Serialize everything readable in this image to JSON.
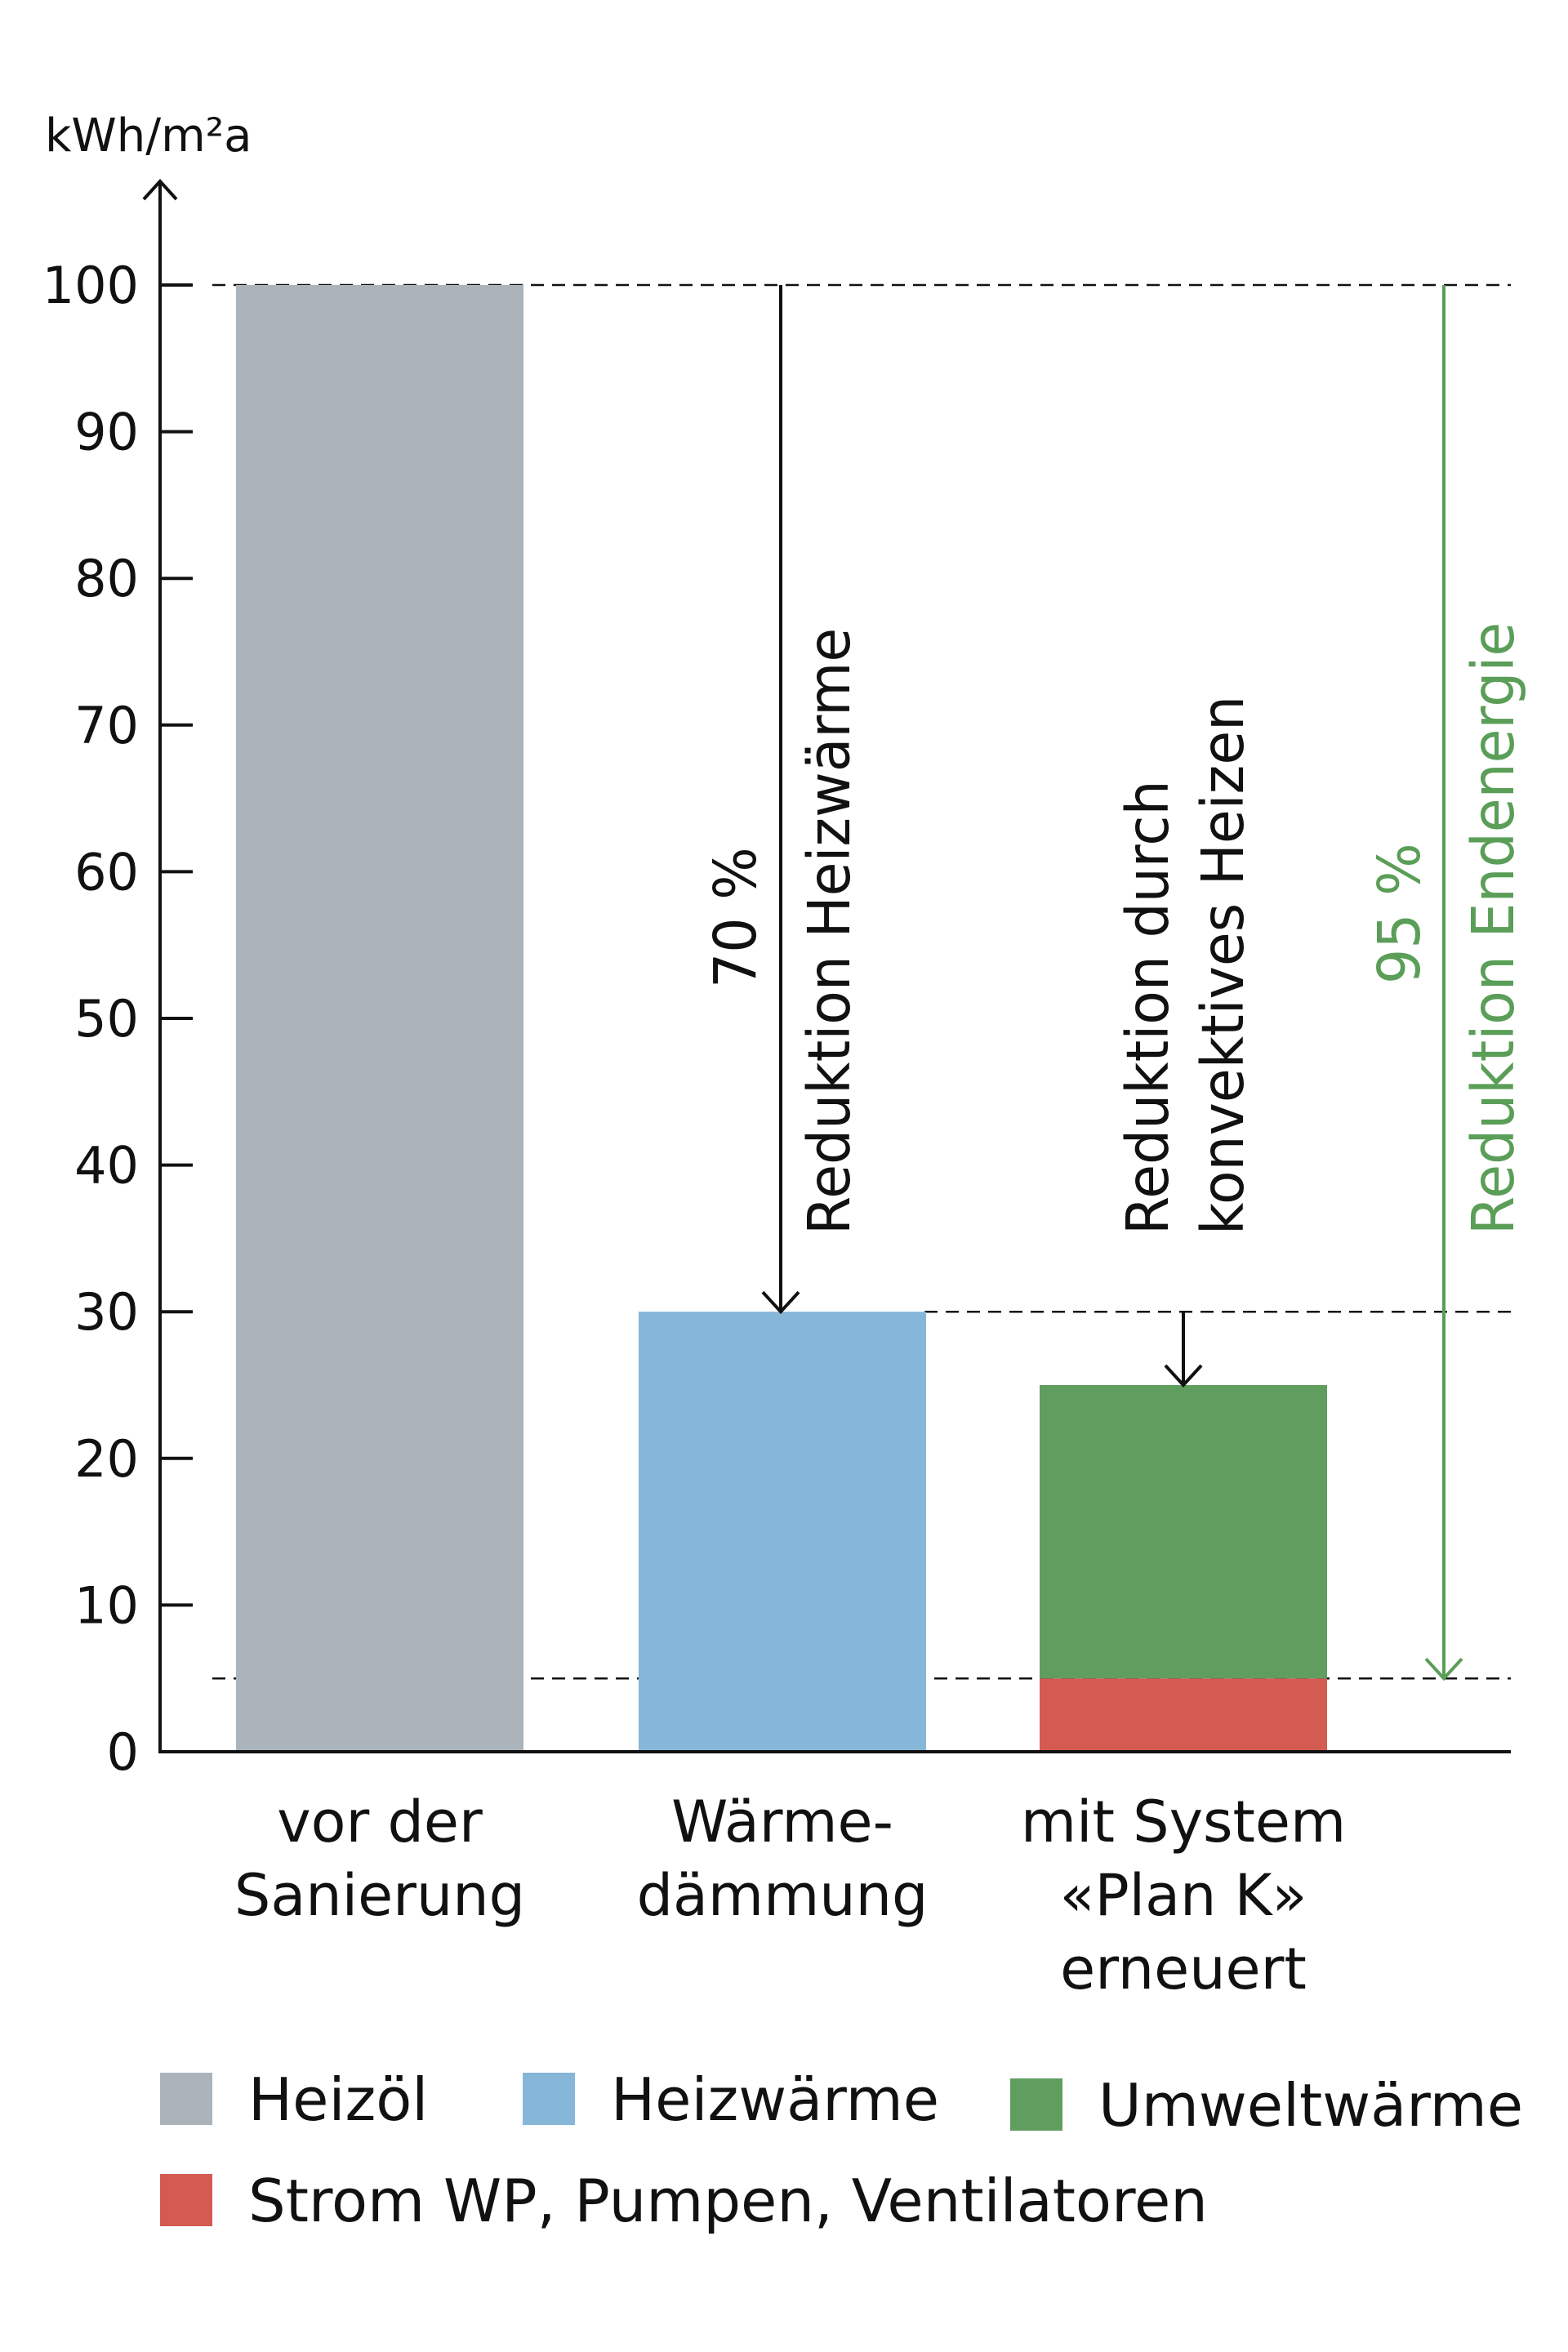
{
  "chart_data": {
    "type": "bar",
    "stacked": true,
    "ylabel": "kWh/m²a",
    "ylim": [
      0,
      100
    ],
    "yticks": [
      0,
      10,
      20,
      30,
      40,
      50,
      60,
      70,
      80,
      90,
      100
    ],
    "categories": [
      [
        "vor der",
        "Sanierung"
      ],
      [
        "Wärme-",
        "dämmung"
      ],
      [
        "mit System",
        "«Plan K»",
        "erneuert"
      ]
    ],
    "series": [
      {
        "name": "Heizöl",
        "color": "#aab4ba",
        "values": [
          100,
          0,
          0
        ]
      },
      {
        "name": "Heizwärme",
        "color": "#86b6d8",
        "values": [
          0,
          30,
          0
        ]
      },
      {
        "name": "Strom WP, Pumpen, Ventilatoren",
        "color": "#d35b51",
        "values": [
          0,
          0,
          5
        ]
      },
      {
        "name": "Umweltwärme",
        "color": "#609e5f",
        "values": [
          0,
          0,
          20
        ]
      }
    ],
    "reference_lines": [
      100,
      30,
      5
    ],
    "annotations": [
      {
        "lines": [
          "70 %",
          "Reduktion Heizwärme"
        ],
        "from": 100,
        "to": 30,
        "color": "#111111"
      },
      {
        "lines": [
          "Reduktion durch",
          "konvektives Heizen"
        ],
        "from": 30,
        "to": 25,
        "color": "#111111"
      },
      {
        "lines": [
          "95 %",
          "Reduktion Endenergie"
        ],
        "from": 100,
        "to": 5,
        "color": "#5a9e58"
      }
    ],
    "legend": [
      "Heizöl",
      "Heizwärme",
      "Umweltwärme",
      "Strom WP, Pumpen, Ventilatoren"
    ],
    "legend_position": "bottom"
  }
}
